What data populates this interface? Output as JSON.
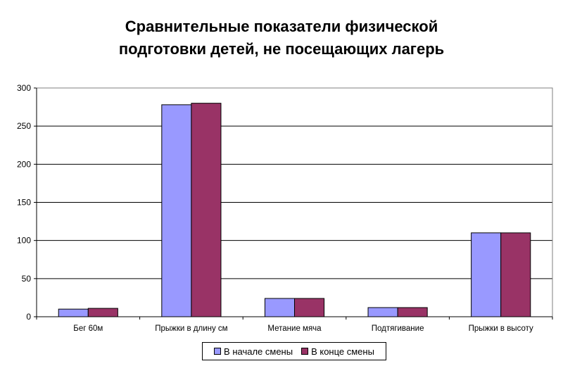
{
  "chart_data": {
    "type": "bar",
    "title_lines": [
      "Сравнительные показатели физической",
      "подготовки детей, не посещающих лагерь"
    ],
    "categories": [
      "Бег 60м",
      "Прыжки в длину см",
      "Метание мяча",
      "Подтягивание",
      "Прыжки в высоту"
    ],
    "series": [
      {
        "name": "В начале смены",
        "values": [
          10,
          278,
          24,
          12,
          110
        ],
        "color": "#9999ff"
      },
      {
        "name": "В конце смены",
        "values": [
          11,
          280,
          24,
          12,
          110
        ],
        "color": "#993366"
      }
    ],
    "ylim": [
      0,
      300
    ],
    "yticks": [
      0,
      50,
      100,
      150,
      200,
      250,
      300
    ],
    "grid": true,
    "legend_position": "bottom"
  }
}
